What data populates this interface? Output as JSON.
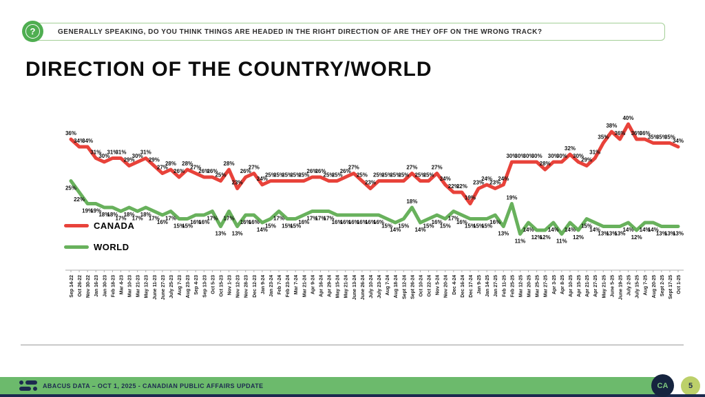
{
  "question_bar": {
    "text": "GENERALLY SPEAKING, DO YOU THINK THINGS ARE HEADED IN THE RIGHT DIRECTION OF ARE THEY OFF ON THE WRONG TRACK?",
    "icon": "question-icon",
    "icon_glyph": "?",
    "border_color": "#a3cf96",
    "icon_color": "#4fae51"
  },
  "title": "DIRECTION OF THE COUNTRY/WORLD",
  "chart_data": {
    "type": "line",
    "title": "DIRECTION OF THE COUNTRY/WORLD",
    "xlabel": "",
    "ylabel": "",
    "ylim": [
      8,
      42
    ],
    "grid": false,
    "legend_position": "left-middle",
    "labels_format": "percent",
    "categories": [
      "Sep 14-22",
      "Oct 26-22",
      "Nov 30-22",
      "Jan 16-23",
      "Jan 30-23",
      "Feb 18-23",
      "Mar 4-23",
      "Mar 10-23",
      "Mar 21-23",
      "May 12-23",
      "June 11-23",
      "June 27-23",
      "July 25-23",
      "Aug 7-23",
      "Aug 23-23",
      "Sep 4-23",
      "Sep 13-23",
      "Oct 5-23",
      "Oct 15-23",
      "Nov 1-23",
      "Nov 12-23",
      "Nov 28-23",
      "Dec 12-23",
      "Jan 9-24",
      "Jan 23-24",
      "Feb 7-24",
      "Feb 23-24",
      "Mar 7-24",
      "Mar 21-24",
      "Apr 9-24",
      "Apr 16-24",
      "Apr 29-24",
      "May 15-24",
      "May 21-24",
      "June 13-24",
      "June 26-24",
      "July 10-24",
      "July 23-24",
      "Aug 7-24",
      "Aug 18-24",
      "Sept 12-24",
      "Sept 26-24",
      "Oct 10-24",
      "Oct 22-24",
      "Nov 5-24",
      "Nov 20-24",
      "Dec 4-24",
      "Dec 16-24",
      "Dec 17-24",
      "Jan 9-25",
      "Jan 14-25",
      "Jan 27-25",
      "Feb 11-25",
      "Feb 25-25",
      "Mar 12-25",
      "Mar 20-25",
      "Mar 25-25",
      "Mar 27-25",
      "Apr 3-25",
      "Apr 8-25",
      "Apr 10-25",
      "Apr 15-25",
      "Apr 21-25",
      "Apr 27-25",
      "May 21-25",
      "June 5-25",
      "June 19-25",
      "July 2-25",
      "July 15-25",
      "Aug 7-25",
      "Aug 20-25",
      "Sept 2-25",
      "Sept 17-25",
      "Oct 1-25"
    ],
    "series": [
      {
        "name": "CANADA",
        "color": "#e8423a",
        "values": [
          36,
          34,
          34,
          31,
          30,
          31,
          31,
          29,
          30,
          31,
          29,
          27,
          28,
          26,
          28,
          27,
          26,
          26,
          25,
          28,
          23,
          26,
          27,
          24,
          25,
          25,
          25,
          25,
          25,
          26,
          26,
          25,
          25,
          26,
          27,
          25,
          23,
          25,
          25,
          25,
          25,
          27,
          25,
          25,
          27,
          24,
          22,
          22,
          19,
          23,
          24,
          23,
          24,
          30,
          30,
          30,
          30,
          28,
          30,
          30,
          32,
          30,
          29,
          31,
          35,
          38,
          36,
          40,
          36,
          36,
          35,
          35,
          35,
          34
        ]
      },
      {
        "name": "WORLD",
        "color": "#68b15c",
        "values": [
          25,
          22,
          19,
          19,
          18,
          18,
          17,
          18,
          17,
          18,
          17,
          16,
          17,
          15,
          15,
          16,
          16,
          17,
          13,
          17,
          13,
          16,
          16,
          14,
          15,
          17,
          15,
          15,
          16,
          17,
          17,
          17,
          16,
          16,
          16,
          16,
          16,
          16,
          15,
          14,
          15,
          18,
          14,
          15,
          16,
          15,
          17,
          16,
          15,
          15,
          15,
          16,
          13,
          19,
          11,
          14,
          12,
          12,
          14,
          11,
          14,
          12,
          15,
          14,
          13,
          13,
          13,
          14,
          12,
          14,
          14,
          13,
          13,
          13
        ]
      }
    ]
  },
  "footer": {
    "text": "ABACUS DATA – OCT 1, 2025 - CANADIAN PUBLIC AFFAIRS UPDATE",
    "logo": "abacus-logo",
    "brand_circle_text": "CA",
    "page_number": "5",
    "bar_color": "#6cba6c",
    "strip_color": "#1b2a4e"
  }
}
